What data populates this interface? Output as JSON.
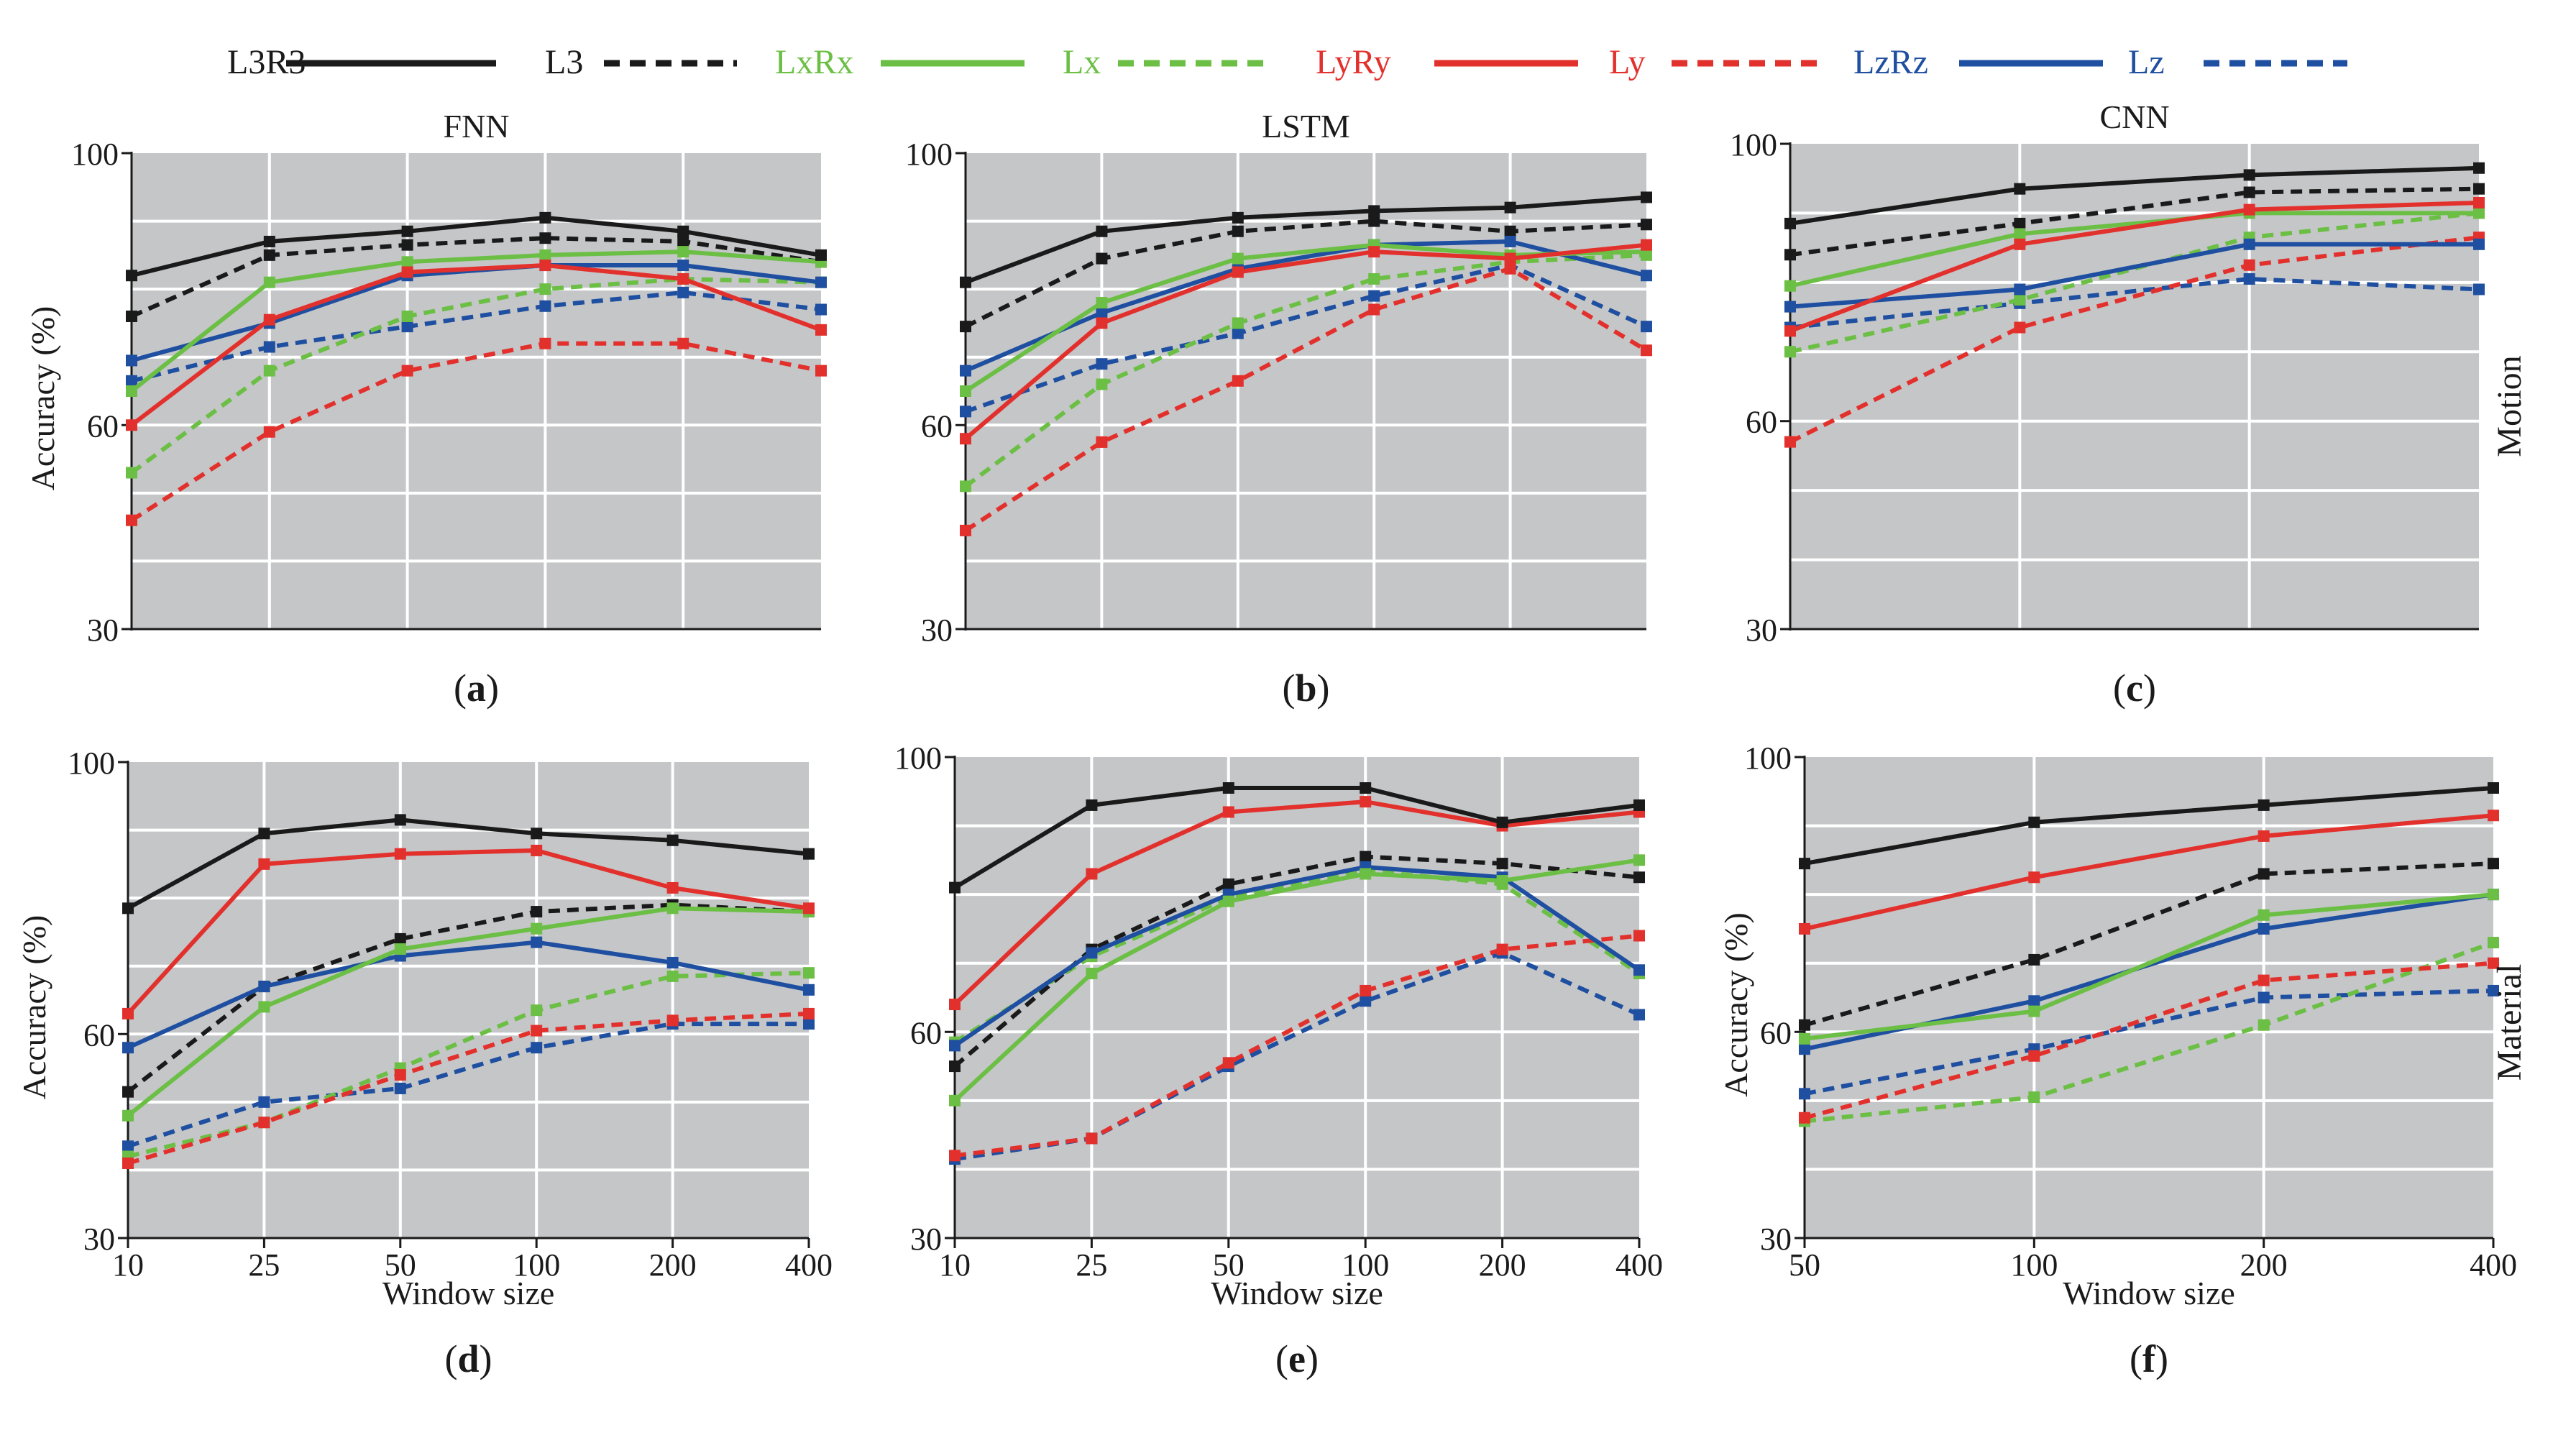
{
  "legend": [
    {
      "label": "L3R3",
      "color": "#1a1a1a",
      "dashed": false
    },
    {
      "label": "L3",
      "color": "#1a1a1a",
      "dashed": true
    },
    {
      "label": "LxRx",
      "color": "#6cbf45",
      "dashed": false
    },
    {
      "label": "Lx",
      "color": "#6cbf45",
      "dashed": true
    },
    {
      "label": "LyRy",
      "color": "#e2312d",
      "dashed": false
    },
    {
      "label": "Ly",
      "color": "#e2312d",
      "dashed": true
    },
    {
      "label": "LzRz",
      "color": "#1f4fa0",
      "dashed": false
    },
    {
      "label": "Lz",
      "color": "#1f4fa0",
      "dashed": true
    }
  ],
  "colors": {
    "plot_bg": "#c5c6c8",
    "grid": "#ffffff",
    "axis": "#1a1a1a"
  },
  "row_labels": [
    "Motion",
    "Material"
  ],
  "chart_data": [
    {
      "type": "line",
      "id": "a",
      "panel_label": "a",
      "title": "FNN",
      "ylabel": "Accuracy (%)",
      "xlabel": "",
      "ylim": [
        30,
        100
      ],
      "yticks": [
        "30",
        "60",
        "100"
      ],
      "xticks": [],
      "x": [
        "10",
        "25",
        "50",
        "100",
        "200",
        "400"
      ],
      "grid": true,
      "series": [
        {
          "name": "L3R3",
          "values": [
            82,
            87,
            88.5,
            90.5,
            88.5,
            85
          ]
        },
        {
          "name": "L3",
          "values": [
            76,
            85,
            86.5,
            87.5,
            87,
            84
          ]
        },
        {
          "name": "LxRx",
          "values": [
            65,
            81,
            84,
            85,
            85.5,
            84
          ]
        },
        {
          "name": "Lx",
          "values": [
            53,
            68,
            76,
            80,
            81.5,
            81
          ]
        },
        {
          "name": "LyRy",
          "values": [
            60,
            75.5,
            82.5,
            83.5,
            81.5,
            74
          ]
        },
        {
          "name": "Ly",
          "values": [
            46,
            59,
            68,
            72,
            72,
            68
          ]
        },
        {
          "name": "LzRz",
          "values": [
            69.5,
            75,
            82,
            83.5,
            83.5,
            81
          ]
        },
        {
          "name": "Lz",
          "values": [
            66.5,
            71.5,
            74.5,
            77.5,
            79.5,
            77
          ]
        }
      ]
    },
    {
      "type": "line",
      "id": "b",
      "panel_label": "b",
      "title": "LSTM",
      "ylabel": "",
      "xlabel": "",
      "ylim": [
        30,
        100
      ],
      "yticks": [
        "30",
        "60",
        "100"
      ],
      "xticks": [],
      "x": [
        "10",
        "25",
        "50",
        "100",
        "200",
        "400"
      ],
      "grid": true,
      "series": [
        {
          "name": "L3R3",
          "values": [
            81,
            88.5,
            90.5,
            91.5,
            92,
            93.5
          ]
        },
        {
          "name": "L3",
          "values": [
            74.5,
            84.5,
            88.5,
            90,
            88.5,
            89.5
          ]
        },
        {
          "name": "LxRx",
          "values": [
            65,
            78,
            84.5,
            86.5,
            85,
            85.5
          ]
        },
        {
          "name": "Lx",
          "values": [
            51,
            66,
            75,
            81.5,
            84,
            85
          ]
        },
        {
          "name": "LyRy",
          "values": [
            58,
            75,
            82.5,
            85.5,
            84.5,
            86.5
          ]
        },
        {
          "name": "Ly",
          "values": [
            44.5,
            57.5,
            66.5,
            77,
            83,
            71
          ]
        },
        {
          "name": "LzRz",
          "values": [
            68,
            76.5,
            83,
            86.5,
            87,
            82
          ]
        },
        {
          "name": "Lz",
          "values": [
            62,
            69,
            73.5,
            79,
            83.5,
            74.5
          ]
        }
      ]
    },
    {
      "type": "line",
      "id": "c",
      "panel_label": "c",
      "title": "CNN",
      "ylabel": "",
      "xlabel": "",
      "ylim": [
        30,
        100
      ],
      "yticks": [
        "30",
        "60",
        "100"
      ],
      "xticks": [],
      "x": [
        "50",
        "100",
        "200",
        "400"
      ],
      "grid": true,
      "series": [
        {
          "name": "L3R3",
          "values": [
            88.5,
            93.5,
            95.5,
            96.5
          ]
        },
        {
          "name": "L3",
          "values": [
            84,
            88.5,
            93,
            93.5
          ]
        },
        {
          "name": "LxRx",
          "values": [
            79.5,
            87,
            90,
            90
          ]
        },
        {
          "name": "Lx",
          "values": [
            70,
            77.5,
            86.5,
            90
          ]
        },
        {
          "name": "LyRy",
          "values": [
            73,
            85.5,
            90.5,
            91.5
          ]
        },
        {
          "name": "Ly",
          "values": [
            57,
            73.5,
            82.5,
            86.5
          ]
        },
        {
          "name": "LzRz",
          "values": [
            76.5,
            79,
            85.5,
            85.5
          ]
        },
        {
          "name": "Lz",
          "values": [
            73.5,
            77,
            80.5,
            79
          ]
        }
      ]
    },
    {
      "type": "line",
      "id": "d",
      "panel_label": "d",
      "title": "",
      "ylabel": "Accuracy (%)",
      "xlabel": "Window size",
      "ylim": [
        30,
        100
      ],
      "yticks": [
        "30",
        "60",
        "100"
      ],
      "xticks": [
        "10",
        "25",
        "50",
        "100",
        "200",
        "400"
      ],
      "x": [
        "10",
        "25",
        "50",
        "100",
        "200",
        "400"
      ],
      "grid": true,
      "series": [
        {
          "name": "L3R3",
          "values": [
            78.5,
            89.5,
            91.5,
            89.5,
            88.5,
            86.5
          ]
        },
        {
          "name": "L3",
          "values": [
            51.5,
            67,
            74,
            78,
            79,
            78
          ]
        },
        {
          "name": "LxRx",
          "values": [
            48,
            64,
            72.5,
            75.5,
            78.5,
            78
          ]
        },
        {
          "name": "Lx",
          "values": [
            42,
            47,
            55,
            63.5,
            68.5,
            69
          ]
        },
        {
          "name": "LyRy",
          "values": [
            63,
            85,
            86.5,
            87,
            81.5,
            78.5
          ]
        },
        {
          "name": "Ly",
          "values": [
            41,
            47,
            54,
            60.5,
            62,
            63
          ]
        },
        {
          "name": "LzRz",
          "values": [
            58,
            67,
            71.5,
            73.5,
            70.5,
            66.5
          ]
        },
        {
          "name": "Lz",
          "values": [
            43.5,
            50,
            52,
            58,
            61.5,
            61.5
          ]
        }
      ]
    },
    {
      "type": "line",
      "id": "e",
      "panel_label": "e",
      "title": "",
      "ylabel": "",
      "xlabel": "Window size",
      "ylim": [
        30,
        100
      ],
      "yticks": [
        "30",
        "60",
        "100"
      ],
      "xticks": [
        "10",
        "25",
        "50",
        "100",
        "200",
        "400"
      ],
      "x": [
        "10",
        "25",
        "50",
        "100",
        "200",
        "400"
      ],
      "grid": true,
      "series": [
        {
          "name": "L3R3",
          "values": [
            81,
            93,
            95.5,
            95.5,
            90.5,
            93
          ]
        },
        {
          "name": "L3",
          "values": [
            55,
            72,
            81.5,
            85.5,
            84.5,
            82.5
          ]
        },
        {
          "name": "LxRx",
          "values": [
            50,
            68.5,
            79,
            83,
            82,
            85
          ]
        },
        {
          "name": "Lx",
          "values": [
            58.5,
            71,
            79.5,
            83.5,
            81.5,
            68.5
          ]
        },
        {
          "name": "LyRy",
          "values": [
            64,
            83,
            92,
            93.5,
            90,
            92
          ]
        },
        {
          "name": "Ly",
          "values": [
            42,
            44.5,
            55.5,
            66,
            72,
            74
          ]
        },
        {
          "name": "LzRz",
          "values": [
            58,
            71.5,
            80,
            84,
            82.5,
            69
          ]
        },
        {
          "name": "Lz",
          "values": [
            41.5,
            44.5,
            55,
            64.5,
            71.5,
            62.5
          ]
        }
      ]
    },
    {
      "type": "line",
      "id": "f",
      "panel_label": "f",
      "title": "",
      "ylabel": "Accuracy (%)",
      "xlabel": "Window size",
      "ylim": [
        30,
        100
      ],
      "yticks": [
        "30",
        "60",
        "100"
      ],
      "xticks": [
        "50",
        "100",
        "200",
        "400"
      ],
      "x": [
        "50",
        "100",
        "200",
        "400"
      ],
      "grid": true,
      "series": [
        {
          "name": "L3R3",
          "values": [
            84.5,
            90.5,
            93,
            95.5
          ]
        },
        {
          "name": "L3",
          "values": [
            61,
            70.5,
            83,
            84.5
          ]
        },
        {
          "name": "LxRx",
          "values": [
            59,
            63,
            77,
            80
          ]
        },
        {
          "name": "Lx",
          "values": [
            47,
            50.5,
            61,
            73
          ]
        },
        {
          "name": "LyRy",
          "values": [
            75,
            82.5,
            88.5,
            91.5
          ]
        },
        {
          "name": "Ly",
          "values": [
            47.5,
            56.5,
            67.5,
            70
          ]
        },
        {
          "name": "LzRz",
          "values": [
            57.5,
            64.5,
            75,
            80
          ]
        },
        {
          "name": "Lz",
          "values": [
            51,
            57.5,
            65,
            66
          ]
        }
      ]
    }
  ]
}
